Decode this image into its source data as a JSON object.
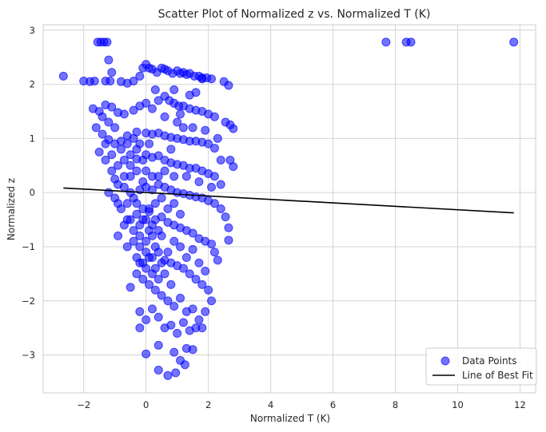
{
  "chart_data": {
    "type": "scatter",
    "title": "Scatter Plot of Normalized z vs. Normalized T (K)",
    "xlabel": "Normalized T (K)",
    "ylabel": "Normalized z",
    "xlim": [
      -3.3,
      12.5
    ],
    "ylim": [
      -3.7,
      3.1
    ],
    "xticks": [
      -2,
      0,
      2,
      4,
      6,
      8,
      10,
      12
    ],
    "yticks": [
      -3,
      -2,
      -1,
      0,
      1,
      2,
      3
    ],
    "grid": true,
    "legend_position": "lower-right",
    "series": [
      {
        "name": "Data Points",
        "kind": "scatter",
        "color": "#0000ff",
        "alpha": 0.55,
        "points": [
          [
            -1.55,
            2.78
          ],
          [
            -1.45,
            2.78
          ],
          [
            -1.35,
            2.78
          ],
          [
            -1.25,
            2.78
          ],
          [
            7.7,
            2.78
          ],
          [
            8.35,
            2.78
          ],
          [
            8.5,
            2.78
          ],
          [
            11.8,
            2.78
          ],
          [
            -2.65,
            2.15
          ],
          [
            -2.0,
            2.06
          ],
          [
            -1.8,
            2.05
          ],
          [
            -1.65,
            2.06
          ],
          [
            -1.3,
            2.06
          ],
          [
            -1.15,
            2.06
          ],
          [
            -1.2,
            2.45
          ],
          [
            -1.1,
            2.22
          ],
          [
            -0.8,
            2.05
          ],
          [
            -0.6,
            2.02
          ],
          [
            -0.4,
            2.06
          ],
          [
            -0.2,
            2.15
          ],
          [
            -0.1,
            2.3
          ],
          [
            0.0,
            2.37
          ],
          [
            0.1,
            2.3
          ],
          [
            0.2,
            2.28
          ],
          [
            0.35,
            2.22
          ],
          [
            0.5,
            2.3
          ],
          [
            0.6,
            2.28
          ],
          [
            0.7,
            2.25
          ],
          [
            0.85,
            2.2
          ],
          [
            1.0,
            2.25
          ],
          [
            1.1,
            2.2
          ],
          [
            1.2,
            2.22
          ],
          [
            1.3,
            2.18
          ],
          [
            1.4,
            2.2
          ],
          [
            1.55,
            2.15
          ],
          [
            1.7,
            2.15
          ],
          [
            1.8,
            2.12
          ],
          [
            1.95,
            2.12
          ],
          [
            2.1,
            2.1
          ],
          [
            2.5,
            2.05
          ],
          [
            2.65,
            1.98
          ],
          [
            -1.7,
            1.55
          ],
          [
            -1.5,
            1.5
          ],
          [
            -1.3,
            1.62
          ],
          [
            -1.1,
            1.58
          ],
          [
            -0.9,
            1.48
          ],
          [
            -0.7,
            1.45
          ],
          [
            -0.4,
            1.52
          ],
          [
            -0.2,
            1.6
          ],
          [
            0.0,
            1.65
          ],
          [
            0.2,
            1.55
          ],
          [
            0.4,
            1.7
          ],
          [
            0.6,
            1.78
          ],
          [
            0.75,
            1.7
          ],
          [
            0.9,
            1.65
          ],
          [
            1.05,
            1.6
          ],
          [
            1.2,
            1.6
          ],
          [
            1.4,
            1.55
          ],
          [
            1.6,
            1.52
          ],
          [
            1.8,
            1.5
          ],
          [
            2.0,
            1.45
          ],
          [
            2.2,
            1.4
          ],
          [
            2.55,
            1.3
          ],
          [
            2.7,
            1.25
          ],
          [
            2.8,
            1.18
          ],
          [
            -1.6,
            1.2
          ],
          [
            -1.4,
            1.08
          ],
          [
            -1.2,
            0.98
          ],
          [
            -1.0,
            0.9
          ],
          [
            -0.8,
            0.95
          ],
          [
            -0.6,
            1.05
          ],
          [
            -0.3,
            1.12
          ],
          [
            0.0,
            1.1
          ],
          [
            0.2,
            1.08
          ],
          [
            0.4,
            1.1
          ],
          [
            0.6,
            1.05
          ],
          [
            0.8,
            1.02
          ],
          [
            1.0,
            1.0
          ],
          [
            1.2,
            0.98
          ],
          [
            1.4,
            0.95
          ],
          [
            1.6,
            0.95
          ],
          [
            1.8,
            0.93
          ],
          [
            2.0,
            0.9
          ],
          [
            2.2,
            0.82
          ],
          [
            2.7,
            0.6
          ],
          [
            2.8,
            0.48
          ],
          [
            -1.5,
            0.75
          ],
          [
            -1.3,
            0.6
          ],
          [
            -1.1,
            0.4
          ],
          [
            -1.0,
            0.25
          ],
          [
            -0.9,
            0.15
          ],
          [
            -0.7,
            0.3
          ],
          [
            -0.5,
            0.5
          ],
          [
            -0.3,
            0.62
          ],
          [
            0.0,
            0.7
          ],
          [
            0.2,
            0.65
          ],
          [
            0.4,
            0.68
          ],
          [
            0.6,
            0.6
          ],
          [
            0.8,
            0.55
          ],
          [
            1.0,
            0.52
          ],
          [
            1.2,
            0.5
          ],
          [
            1.4,
            0.45
          ],
          [
            1.6,
            0.45
          ],
          [
            1.8,
            0.4
          ],
          [
            2.0,
            0.35
          ],
          [
            2.2,
            0.3
          ],
          [
            2.4,
            0.15
          ],
          [
            -1.2,
            0.0
          ],
          [
            -1.0,
            -0.1
          ],
          [
            -0.9,
            -0.2
          ],
          [
            -0.8,
            -0.3
          ],
          [
            -0.6,
            -0.2
          ],
          [
            -0.4,
            -0.1
          ],
          [
            -0.2,
            0.05
          ],
          [
            0.0,
            0.1
          ],
          [
            0.2,
            0.05
          ],
          [
            0.4,
            0.15
          ],
          [
            0.6,
            0.1
          ],
          [
            0.8,
            0.05
          ],
          [
            1.0,
            0.0
          ],
          [
            1.2,
            -0.02
          ],
          [
            1.4,
            -0.05
          ],
          [
            1.6,
            -0.08
          ],
          [
            1.8,
            -0.1
          ],
          [
            2.0,
            -0.15
          ],
          [
            2.2,
            -0.2
          ],
          [
            2.4,
            -0.3
          ],
          [
            2.55,
            -0.45
          ],
          [
            2.65,
            -0.65
          ],
          [
            2.65,
            -0.88
          ],
          [
            -0.9,
            -0.8
          ],
          [
            -0.7,
            -0.6
          ],
          [
            -0.5,
            -0.5
          ],
          [
            -0.3,
            -0.4
          ],
          [
            -0.1,
            -0.3
          ],
          [
            0.1,
            -0.35
          ],
          [
            0.3,
            -0.5
          ],
          [
            0.5,
            -0.45
          ],
          [
            0.7,
            -0.55
          ],
          [
            0.9,
            -0.6
          ],
          [
            1.1,
            -0.65
          ],
          [
            1.3,
            -0.7
          ],
          [
            1.5,
            -0.75
          ],
          [
            1.7,
            -0.85
          ],
          [
            1.9,
            -0.9
          ],
          [
            2.1,
            -0.95
          ],
          [
            2.2,
            -1.1
          ],
          [
            2.3,
            -1.25
          ],
          [
            -0.6,
            -1.0
          ],
          [
            -0.4,
            -0.9
          ],
          [
            -0.2,
            -1.0
          ],
          [
            0.0,
            -1.1
          ],
          [
            0.2,
            -1.2
          ],
          [
            0.4,
            -1.1
          ],
          [
            0.6,
            -1.25
          ],
          [
            0.8,
            -1.3
          ],
          [
            1.0,
            -1.35
          ],
          [
            1.2,
            -1.4
          ],
          [
            1.4,
            -1.5
          ],
          [
            1.6,
            -1.6
          ],
          [
            1.8,
            -1.7
          ],
          [
            2.0,
            -1.8
          ],
          [
            2.1,
            -2.0
          ],
          [
            -0.5,
            -1.75
          ],
          [
            -0.3,
            -1.5
          ],
          [
            -0.1,
            -1.6
          ],
          [
            0.1,
            -1.7
          ],
          [
            0.3,
            -1.8
          ],
          [
            0.5,
            -1.9
          ],
          [
            0.7,
            -2.0
          ],
          [
            0.9,
            -2.1
          ],
          [
            1.1,
            -1.95
          ],
          [
            1.3,
            -2.2
          ],
          [
            1.5,
            -2.15
          ],
          [
            1.7,
            -2.35
          ],
          [
            1.9,
            -2.2
          ],
          [
            -0.2,
            -2.2
          ],
          [
            0.0,
            -2.35
          ],
          [
            0.2,
            -2.15
          ],
          [
            0.4,
            -2.3
          ],
          [
            0.6,
            -2.5
          ],
          [
            0.8,
            -2.45
          ],
          [
            1.0,
            -2.6
          ],
          [
            1.2,
            -2.4
          ],
          [
            1.4,
            -2.55
          ],
          [
            1.6,
            -2.5
          ],
          [
            1.8,
            -2.5
          ],
          [
            -0.2,
            -2.5
          ],
          [
            0.0,
            -2.98
          ],
          [
            0.4,
            -2.82
          ],
          [
            0.9,
            -2.95
          ],
          [
            1.1,
            -3.1
          ],
          [
            1.3,
            -2.88
          ],
          [
            1.5,
            -2.9
          ],
          [
            0.4,
            -3.28
          ],
          [
            0.7,
            -3.38
          ],
          [
            0.95,
            -3.33
          ],
          [
            1.25,
            -3.18
          ],
          [
            -0.5,
            0.3
          ],
          [
            -0.3,
            0.4
          ],
          [
            -0.1,
            0.2
          ],
          [
            -0.5,
            0.0
          ],
          [
            -0.3,
            -0.2
          ],
          [
            -0.1,
            -0.5
          ],
          [
            0.1,
            -0.7
          ],
          [
            -0.2,
            -0.8
          ],
          [
            0.0,
            -0.9
          ],
          [
            0.2,
            -0.8
          ],
          [
            0.1,
            -0.3
          ],
          [
            0.3,
            -0.2
          ],
          [
            0.2,
            -1.5
          ],
          [
            0.0,
            -1.4
          ],
          [
            -0.2,
            -1.3
          ],
          [
            0.4,
            -1.6
          ],
          [
            0.3,
            -1.0
          ],
          [
            0.5,
            -0.8
          ],
          [
            0.6,
            -1.5
          ],
          [
            0.8,
            -1.7
          ],
          [
            0.5,
            -0.1
          ],
          [
            0.7,
            -0.3
          ],
          [
            0.9,
            -0.2
          ],
          [
            1.1,
            -0.4
          ],
          [
            -0.7,
            0.6
          ],
          [
            -0.8,
            0.8
          ],
          [
            -1.0,
            1.2
          ],
          [
            -1.2,
            1.3
          ],
          [
            -1.4,
            1.4
          ],
          [
            -0.6,
            0.9
          ],
          [
            -0.4,
            1.0
          ],
          [
            -0.2,
            0.9
          ],
          [
            0.0,
            0.4
          ],
          [
            0.2,
            0.3
          ],
          [
            0.4,
            0.3
          ],
          [
            0.6,
            0.4
          ],
          [
            0.8,
            0.8
          ],
          [
            1.0,
            1.3
          ],
          [
            1.2,
            1.2
          ],
          [
            1.4,
            1.8
          ],
          [
            1.6,
            1.85
          ],
          [
            1.8,
            2.1
          ],
          [
            0.3,
            1.9
          ],
          [
            0.6,
            1.4
          ],
          [
            0.9,
            1.9
          ],
          [
            1.1,
            1.45
          ],
          [
            1.5,
            1.2
          ],
          [
            1.9,
            1.15
          ],
          [
            2.3,
            1.0
          ],
          [
            2.4,
            0.6
          ],
          [
            2.1,
            0.1
          ],
          [
            1.7,
            0.2
          ],
          [
            1.3,
            0.3
          ],
          [
            0.9,
            0.3
          ],
          [
            -0.6,
            -0.5
          ],
          [
            -0.4,
            -0.7
          ],
          [
            -0.2,
            -0.6
          ],
          [
            0.0,
            -0.5
          ],
          [
            0.2,
            -0.6
          ],
          [
            0.4,
            -0.7
          ],
          [
            -0.3,
            -1.2
          ],
          [
            -0.1,
            -1.3
          ],
          [
            0.1,
            -1.2
          ],
          [
            0.3,
            -1.4
          ],
          [
            0.5,
            -1.3
          ],
          [
            0.7,
            -1.1
          ],
          [
            0.9,
            -0.9
          ],
          [
            1.1,
            -1.0
          ],
          [
            1.3,
            -1.2
          ],
          [
            1.5,
            -1.05
          ],
          [
            1.7,
            -1.3
          ],
          [
            1.9,
            -1.45
          ],
          [
            -0.9,
            0.5
          ],
          [
            -0.7,
            0.1
          ],
          [
            -1.1,
            0.7
          ],
          [
            -1.3,
            0.9
          ],
          [
            -0.5,
            0.7
          ],
          [
            -0.3,
            0.8
          ],
          [
            -0.1,
            0.6
          ],
          [
            0.1,
            0.9
          ]
        ]
      },
      {
        "name": "Line of Best Fit",
        "kind": "line",
        "color": "#000000",
        "points": [
          [
            -2.65,
            0.085
          ],
          [
            11.8,
            -0.375
          ]
        ]
      }
    ]
  }
}
